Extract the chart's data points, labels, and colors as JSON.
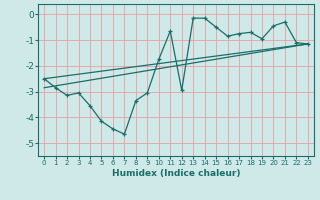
{
  "xlabel": "Humidex (Indice chaleur)",
  "bg_color": "#cfe8e8",
  "grid_color": "#e8a0a0",
  "line_color": "#1a6e6a",
  "xlim": [
    -0.5,
    23.5
  ],
  "ylim": [
    -5.5,
    0.4
  ],
  "yticks": [
    0,
    -1,
    -2,
    -3,
    -4,
    -5
  ],
  "xticks": [
    0,
    1,
    2,
    3,
    4,
    5,
    6,
    7,
    8,
    9,
    10,
    11,
    12,
    13,
    14,
    15,
    16,
    17,
    18,
    19,
    20,
    21,
    22,
    23
  ],
  "line1_x": [
    0,
    1,
    2,
    3,
    4,
    5,
    6,
    7,
    8,
    9,
    10,
    11,
    12,
    13,
    14,
    15,
    16,
    17,
    18,
    19,
    20,
    21,
    22,
    23
  ],
  "line1_y": [
    -2.5,
    -2.85,
    -3.15,
    -3.05,
    -3.55,
    -4.15,
    -4.45,
    -4.65,
    -3.35,
    -3.05,
    -1.75,
    -0.65,
    -2.95,
    -0.15,
    -0.15,
    -0.5,
    -0.85,
    -0.75,
    -0.7,
    -0.95,
    -0.45,
    -0.3,
    -1.1,
    -1.15
  ],
  "line2_x": [
    0,
    23
  ],
  "line2_y": [
    -2.5,
    -1.15
  ],
  "line3_x": [
    0,
    23
  ],
  "line3_y": [
    -2.85,
    -1.15
  ],
  "marker": "+"
}
